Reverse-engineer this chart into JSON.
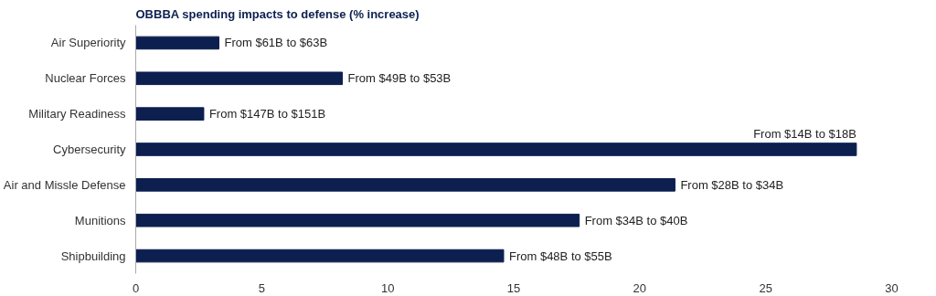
{
  "chart_data": {
    "type": "bar",
    "orientation": "horizontal",
    "title": "OBBBA spending impacts to defense (% increase)",
    "categories": [
      "Air Superiority",
      "Nuclear Forces",
      "Military Readiness",
      "Cybersecurity",
      "Air and Missle Defense",
      "Munitions",
      "Shipbuilding"
    ],
    "values": [
      3.3,
      8.2,
      2.7,
      28.6,
      21.4,
      17.6,
      14.6
    ],
    "value_labels": [
      "From $61B to $63B",
      "From $49B to $53B",
      "From $147B to $151B",
      "From $14B to $18B",
      "From $28B to $34B",
      "From $34B to $40B",
      "From $48B to $55B"
    ],
    "color": "#0c1f4f",
    "xlim": [
      0,
      30
    ],
    "xticks": [
      0,
      5,
      10,
      15,
      20,
      25,
      30
    ],
    "grid": false
  }
}
